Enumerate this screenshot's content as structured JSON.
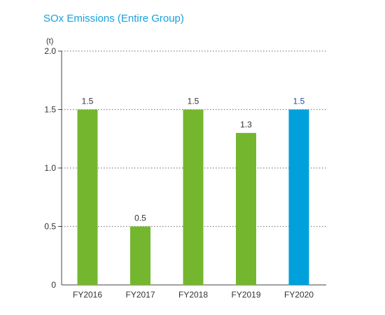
{
  "colors": {
    "title": "#1a9fd9",
    "bar": "#74b72e",
    "highlight_bar": "#00a0dc",
    "highlight_label": "#1a4fa3",
    "text": "#333333",
    "axis": "#444444",
    "grid": "#888888"
  },
  "chart_data": {
    "type": "bar",
    "title": "SOx Emissions (Entire Group)",
    "unit_label": "(t)",
    "categories": [
      "FY2016",
      "FY2017",
      "FY2018",
      "FY2019",
      "FY2020"
    ],
    "values": [
      1.5,
      0.5,
      1.5,
      1.3,
      1.5
    ],
    "value_labels": [
      "1.5",
      "0.5",
      "1.5",
      "1.3",
      "1.5"
    ],
    "highlight_index": 4,
    "ylim": [
      0,
      2.0
    ],
    "yticks": [
      0,
      0.5,
      1.0,
      1.5,
      2.0
    ],
    "ytick_labels": [
      "0",
      "0.5",
      "1.0",
      "1.5",
      "2.0"
    ],
    "grid": true,
    "grid_style": "dotted"
  }
}
